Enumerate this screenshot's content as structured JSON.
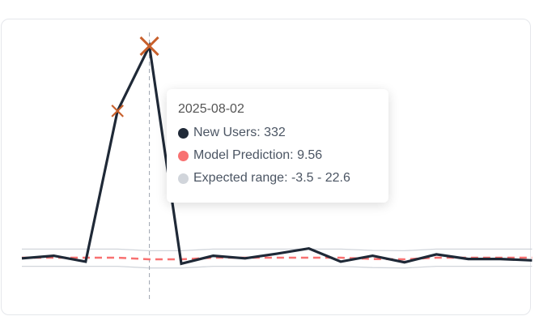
{
  "colors": {
    "actual": "#1f2937",
    "prediction": "#f87171",
    "range": "#d1d5db",
    "anomaly": "#c8602c",
    "cursor": "#9ca3af"
  },
  "chart_data": {
    "type": "line",
    "grid": false,
    "legend": "none",
    "series": [
      {
        "name": "New Users",
        "values": [
          11,
          15,
          6,
          234,
          332,
          3,
          15,
          11,
          18,
          26,
          6,
          15,
          5,
          17,
          10,
          10,
          8
        ]
      },
      {
        "name": "Model Prediction",
        "values": [
          12,
          12,
          12,
          12,
          9.56,
          9.56,
          12,
          12,
          12,
          12,
          12,
          10,
          9.5,
          12,
          12,
          12,
          12
        ]
      },
      {
        "name": "Expected range",
        "lower": [
          -1,
          -1,
          -1,
          -1,
          -3.5,
          -3.5,
          -1,
          -1,
          -1,
          -1,
          -1,
          -3,
          -3.5,
          -1,
          -1,
          -1,
          -1
        ],
        "upper": [
          25,
          25,
          25,
          25,
          22.6,
          22.6,
          25,
          25,
          25,
          25,
          25,
          23,
          22.5,
          25,
          25,
          25,
          25
        ]
      }
    ],
    "anomaly_indices": [
      3,
      4
    ],
    "hover_index": 4
  },
  "tooltip": {
    "date": "2025-08-02",
    "rows": [
      {
        "label": "New Users: 332",
        "color": "#1f2937"
      },
      {
        "label": "Model Prediction: 9.56",
        "color": "#f87171"
      },
      {
        "label": "Expected range: -3.5 - 22.6",
        "color": "#d1d5db"
      }
    ]
  }
}
